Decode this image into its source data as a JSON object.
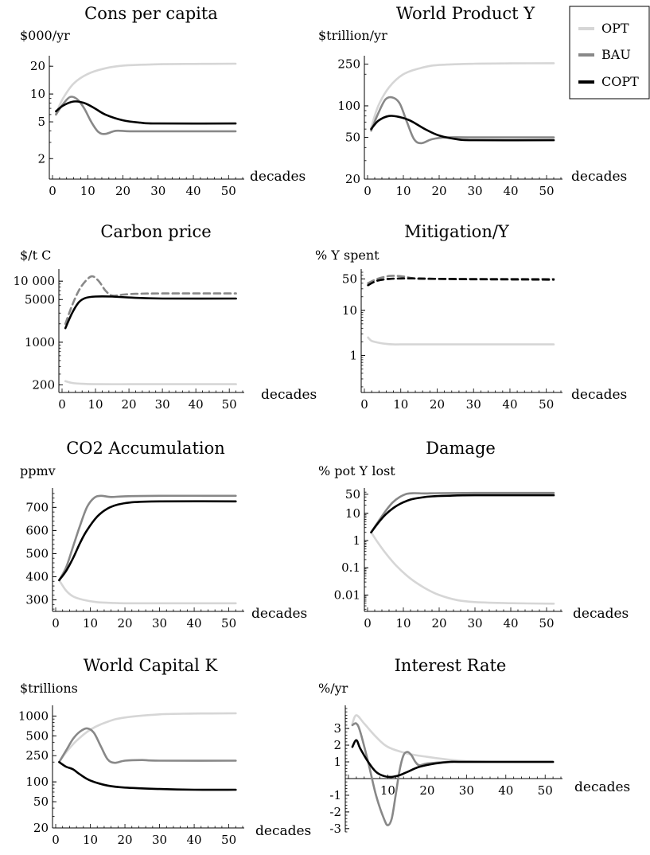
{
  "legend": {
    "entries": [
      {
        "name": "OPT",
        "color": "#d6d6d6"
      },
      {
        "name": "BAU",
        "color": "#888888"
      },
      {
        "name": "COPT",
        "color": "#000000"
      }
    ]
  },
  "chart_data": [
    {
      "type": "line",
      "title": "Cons per capita",
      "ylabel": "$000/yr",
      "xlabel": "decades",
      "scale": "log",
      "xlim": [
        0,
        54
      ],
      "ylim": [
        1.2,
        24
      ],
      "xticks": [
        0,
        10,
        20,
        30,
        40,
        50
      ],
      "yticks": [
        2,
        5,
        10,
        20
      ],
      "ytick_labels": [
        "2",
        "5",
        "10",
        "20"
      ],
      "series": [
        {
          "name": "OPT",
          "x": [
            1,
            3,
            6,
            10,
            15,
            20,
            30,
            40,
            52
          ],
          "y": [
            6.2,
            9,
            13,
            16.5,
            19,
            20.3,
            21,
            21.2,
            21.3
          ]
        },
        {
          "name": "BAU",
          "x": [
            1,
            3,
            5,
            7,
            9,
            11,
            13,
            15,
            18,
            22,
            30,
            52
          ],
          "y": [
            6,
            7.8,
            9.3,
            8.8,
            7,
            5,
            3.9,
            3.7,
            4,
            3.95,
            3.95,
            3.95
          ]
        },
        {
          "name": "COPT",
          "x": [
            1,
            3,
            6,
            9,
            12,
            15,
            20,
            25,
            30,
            52
          ],
          "y": [
            6.5,
            7.5,
            8.3,
            8,
            7,
            6,
            5.2,
            4.9,
            4.8,
            4.8
          ]
        }
      ]
    },
    {
      "type": "line",
      "title": "World Product Y",
      "ylabel": "$trillion/yr",
      "xlabel": "decades",
      "scale": "log",
      "xlim": [
        0,
        54
      ],
      "ylim": [
        20,
        280
      ],
      "xticks": [
        0,
        10,
        20,
        30,
        40,
        50
      ],
      "yticks": [
        20,
        50,
        100,
        250
      ],
      "ytick_labels": [
        "20",
        "50",
        "100",
        "250"
      ],
      "series": [
        {
          "name": "OPT",
          "x": [
            1,
            3,
            6,
            10,
            15,
            20,
            30,
            40,
            52
          ],
          "y": [
            62,
            100,
            150,
            200,
            230,
            245,
            252,
            254,
            255
          ]
        },
        {
          "name": "BAU",
          "x": [
            1,
            3,
            5,
            7,
            9,
            11,
            13,
            15,
            18,
            22,
            30,
            52
          ],
          "y": [
            58,
            85,
            115,
            120,
            105,
            70,
            48,
            44,
            48,
            50,
            50,
            50
          ]
        },
        {
          "name": "COPT",
          "x": [
            1,
            3,
            6,
            9,
            12,
            16,
            20,
            25,
            30,
            52
          ],
          "y": [
            60,
            72,
            80,
            78,
            72,
            60,
            52,
            48,
            47,
            47
          ]
        }
      ]
    },
    {
      "type": "line",
      "title": "Carbon price",
      "ylabel": "$/t C",
      "xlabel": "decades",
      "scale": "log",
      "xlim": [
        0,
        54
      ],
      "ylim": [
        150,
        14000
      ],
      "xticks": [
        0,
        10,
        20,
        30,
        40,
        50
      ],
      "yticks": [
        200,
        1000,
        5000,
        10000
      ],
      "ytick_labels": [
        "200",
        "1000",
        "5000",
        "10 000"
      ],
      "series": [
        {
          "name": "OPT",
          "x": [
            1,
            3,
            6,
            10,
            20,
            30,
            52
          ],
          "y": [
            230,
            215,
            208,
            205,
            205,
            205,
            205
          ]
        },
        {
          "name": "BAU",
          "dashed": true,
          "x": [
            1,
            3,
            5,
            7,
            9,
            11,
            13,
            15,
            18,
            22,
            30,
            52
          ],
          "y": [
            2000,
            4000,
            7000,
            10000,
            12000,
            10000,
            7000,
            5800,
            6000,
            6200,
            6300,
            6300
          ]
        },
        {
          "name": "COPT",
          "x": [
            1,
            3,
            5,
            7,
            10,
            15,
            20,
            30,
            52
          ],
          "y": [
            1700,
            3000,
            4500,
            5300,
            5600,
            5600,
            5400,
            5200,
            5200
          ]
        }
      ]
    },
    {
      "type": "line",
      "title": "Mitigation/Y",
      "ylabel": "% Y spent",
      "xlabel": "decades",
      "scale": "log",
      "xlim": [
        0,
        54
      ],
      "ylim": [
        0.15,
        70
      ],
      "xticks": [
        0,
        10,
        20,
        30,
        40,
        50
      ],
      "yticks": [
        1,
        10,
        50
      ],
      "ytick_labels": [
        "1",
        "10",
        "50"
      ],
      "series": [
        {
          "name": "OPT",
          "x": [
            1,
            2,
            4,
            6,
            8,
            10,
            20,
            30,
            52
          ],
          "y": [
            2.5,
            2.1,
            1.9,
            1.8,
            1.75,
            1.75,
            1.75,
            1.75,
            1.75
          ]
        },
        {
          "name": "BAU",
          "dashed": true,
          "x": [
            1,
            3,
            5,
            7,
            9,
            11,
            13,
            15,
            20,
            30,
            52
          ],
          "y": [
            40,
            48,
            54,
            58,
            58,
            56,
            52,
            50,
            50,
            50,
            50
          ]
        },
        {
          "name": "COPT",
          "dashed": true,
          "x": [
            1,
            3,
            5,
            7,
            10,
            15,
            20,
            30,
            52
          ],
          "y": [
            36,
            44,
            48,
            50,
            51,
            51,
            50,
            49,
            48
          ]
        }
      ]
    },
    {
      "type": "line",
      "title": "CO2 Accumulation",
      "ylabel": "ppmv",
      "xlabel": "decades",
      "scale": "linear",
      "xlim": [
        0,
        54
      ],
      "ylim": [
        250,
        770
      ],
      "xticks": [
        0,
        10,
        20,
        30,
        40,
        50
      ],
      "yticks": [
        300,
        400,
        500,
        600,
        700
      ],
      "ytick_labels": [
        "300",
        "400",
        "500",
        "600",
        "700"
      ],
      "series": [
        {
          "name": "OPT",
          "x": [
            1,
            3,
            5,
            8,
            12,
            16,
            20,
            30,
            52
          ],
          "y": [
            385,
            340,
            315,
            300,
            290,
            287,
            285,
            285,
            285
          ]
        },
        {
          "name": "BAU",
          "x": [
            1,
            3,
            5,
            7,
            9,
            11,
            13,
            16,
            20,
            30,
            52
          ],
          "y": [
            385,
            440,
            530,
            620,
            700,
            740,
            750,
            745,
            748,
            750,
            750
          ]
        },
        {
          "name": "COPT",
          "x": [
            1,
            3,
            5,
            7,
            9,
            12,
            15,
            18,
            22,
            30,
            52
          ],
          "y": [
            385,
            425,
            480,
            545,
            600,
            660,
            695,
            712,
            722,
            726,
            726
          ]
        }
      ]
    },
    {
      "type": "line",
      "title": "Damage",
      "ylabel": "% pot Y lost",
      "xlabel": "decades",
      "scale": "log",
      "xlim": [
        0,
        54
      ],
      "ylim": [
        0.0025,
        65
      ],
      "xticks": [
        0,
        10,
        20,
        30,
        40,
        50
      ],
      "yticks": [
        0.01,
        0.1,
        1,
        10,
        50
      ],
      "ytick_labels": [
        "0.01",
        "0.1",
        "1",
        "10",
        "50"
      ],
      "series": [
        {
          "name": "OPT",
          "x": [
            1,
            3,
            5,
            8,
            12,
            16,
            20,
            25,
            30,
            40,
            52
          ],
          "y": [
            2,
            0.8,
            0.35,
            0.12,
            0.04,
            0.018,
            0.01,
            0.0065,
            0.0055,
            0.005,
            0.0048
          ]
        },
        {
          "name": "BAU",
          "x": [
            1,
            3,
            5,
            7,
            9,
            11,
            13,
            16,
            20,
            30,
            52
          ],
          "y": [
            2,
            5,
            12,
            25,
            40,
            52,
            55,
            54,
            55,
            56,
            56
          ]
        },
        {
          "name": "COPT",
          "x": [
            1,
            3,
            5,
            7,
            9,
            12,
            15,
            18,
            22,
            30,
            52
          ],
          "y": [
            2,
            4.5,
            9,
            15,
            22,
            32,
            38,
            42,
            44,
            46,
            46
          ]
        }
      ]
    },
    {
      "type": "line",
      "title": "World Capital K",
      "ylabel": "$trillions",
      "xlabel": "decades",
      "scale": "log",
      "xlim": [
        0,
        54
      ],
      "ylim": [
        20,
        1300
      ],
      "xticks": [
        0,
        10,
        20,
        30,
        40,
        50
      ],
      "yticks": [
        20,
        50,
        100,
        250,
        500,
        1000
      ],
      "ytick_labels": [
        "20",
        "50",
        "100",
        "250",
        "500",
        "1000"
      ],
      "series": [
        {
          "name": "OPT",
          "x": [
            1,
            3,
            6,
            10,
            15,
            20,
            30,
            40,
            52
          ],
          "y": [
            200,
            280,
            420,
            620,
            820,
            950,
            1060,
            1090,
            1100
          ]
        },
        {
          "name": "BAU",
          "x": [
            1,
            3,
            5,
            7,
            9,
            11,
            13,
            15,
            17,
            20,
            25,
            30,
            52
          ],
          "y": [
            200,
            300,
            450,
            580,
            650,
            560,
            350,
            220,
            195,
            210,
            215,
            210,
            210
          ]
        },
        {
          "name": "COPT",
          "x": [
            1,
            3,
            5,
            7,
            10,
            15,
            20,
            30,
            40,
            52
          ],
          "y": [
            200,
            170,
            155,
            130,
            105,
            88,
            82,
            78,
            76,
            76
          ]
        }
      ]
    },
    {
      "type": "line",
      "title": "Interest Rate",
      "ylabel": "%/yr",
      "xlabel": "decades",
      "scale": "linear",
      "xlim": [
        0,
        54
      ],
      "ylim": [
        -3.2,
        4.2
      ],
      "xticks": [
        10,
        20,
        30,
        40,
        50
      ],
      "yticks": [
        -3,
        -2,
        -1,
        1,
        2,
        3
      ],
      "ytick_labels": [
        "-3",
        "-2",
        "-1",
        "1",
        "2",
        "3"
      ],
      "series": [
        {
          "name": "OPT",
          "x": [
            1,
            2,
            4,
            7,
            10,
            15,
            20,
            25,
            30,
            40,
            52
          ],
          "y": [
            3.3,
            3.8,
            3.3,
            2.5,
            1.9,
            1.5,
            1.3,
            1.15,
            1.05,
            1,
            1
          ]
        },
        {
          "name": "BAU",
          "x": [
            1,
            2,
            3,
            5,
            7,
            9,
            10,
            11,
            12,
            13,
            14,
            15,
            16,
            17,
            18,
            20,
            25,
            30,
            52
          ],
          "y": [
            3.2,
            3.3,
            2.8,
            1,
            -1,
            -2.4,
            -2.8,
            -2.4,
            -1,
            0.5,
            1.4,
            1.6,
            1.4,
            1,
            0.8,
            0.9,
            1,
            1,
            1
          ]
        },
        {
          "name": "COPT",
          "x": [
            1,
            2,
            3,
            5,
            7,
            9,
            11,
            13,
            15,
            18,
            22,
            26,
            30,
            52
          ],
          "y": [
            1.9,
            2.3,
            1.8,
            1,
            0.4,
            0.15,
            0.1,
            0.2,
            0.4,
            0.7,
            0.9,
            1,
            1,
            1
          ]
        }
      ]
    }
  ]
}
